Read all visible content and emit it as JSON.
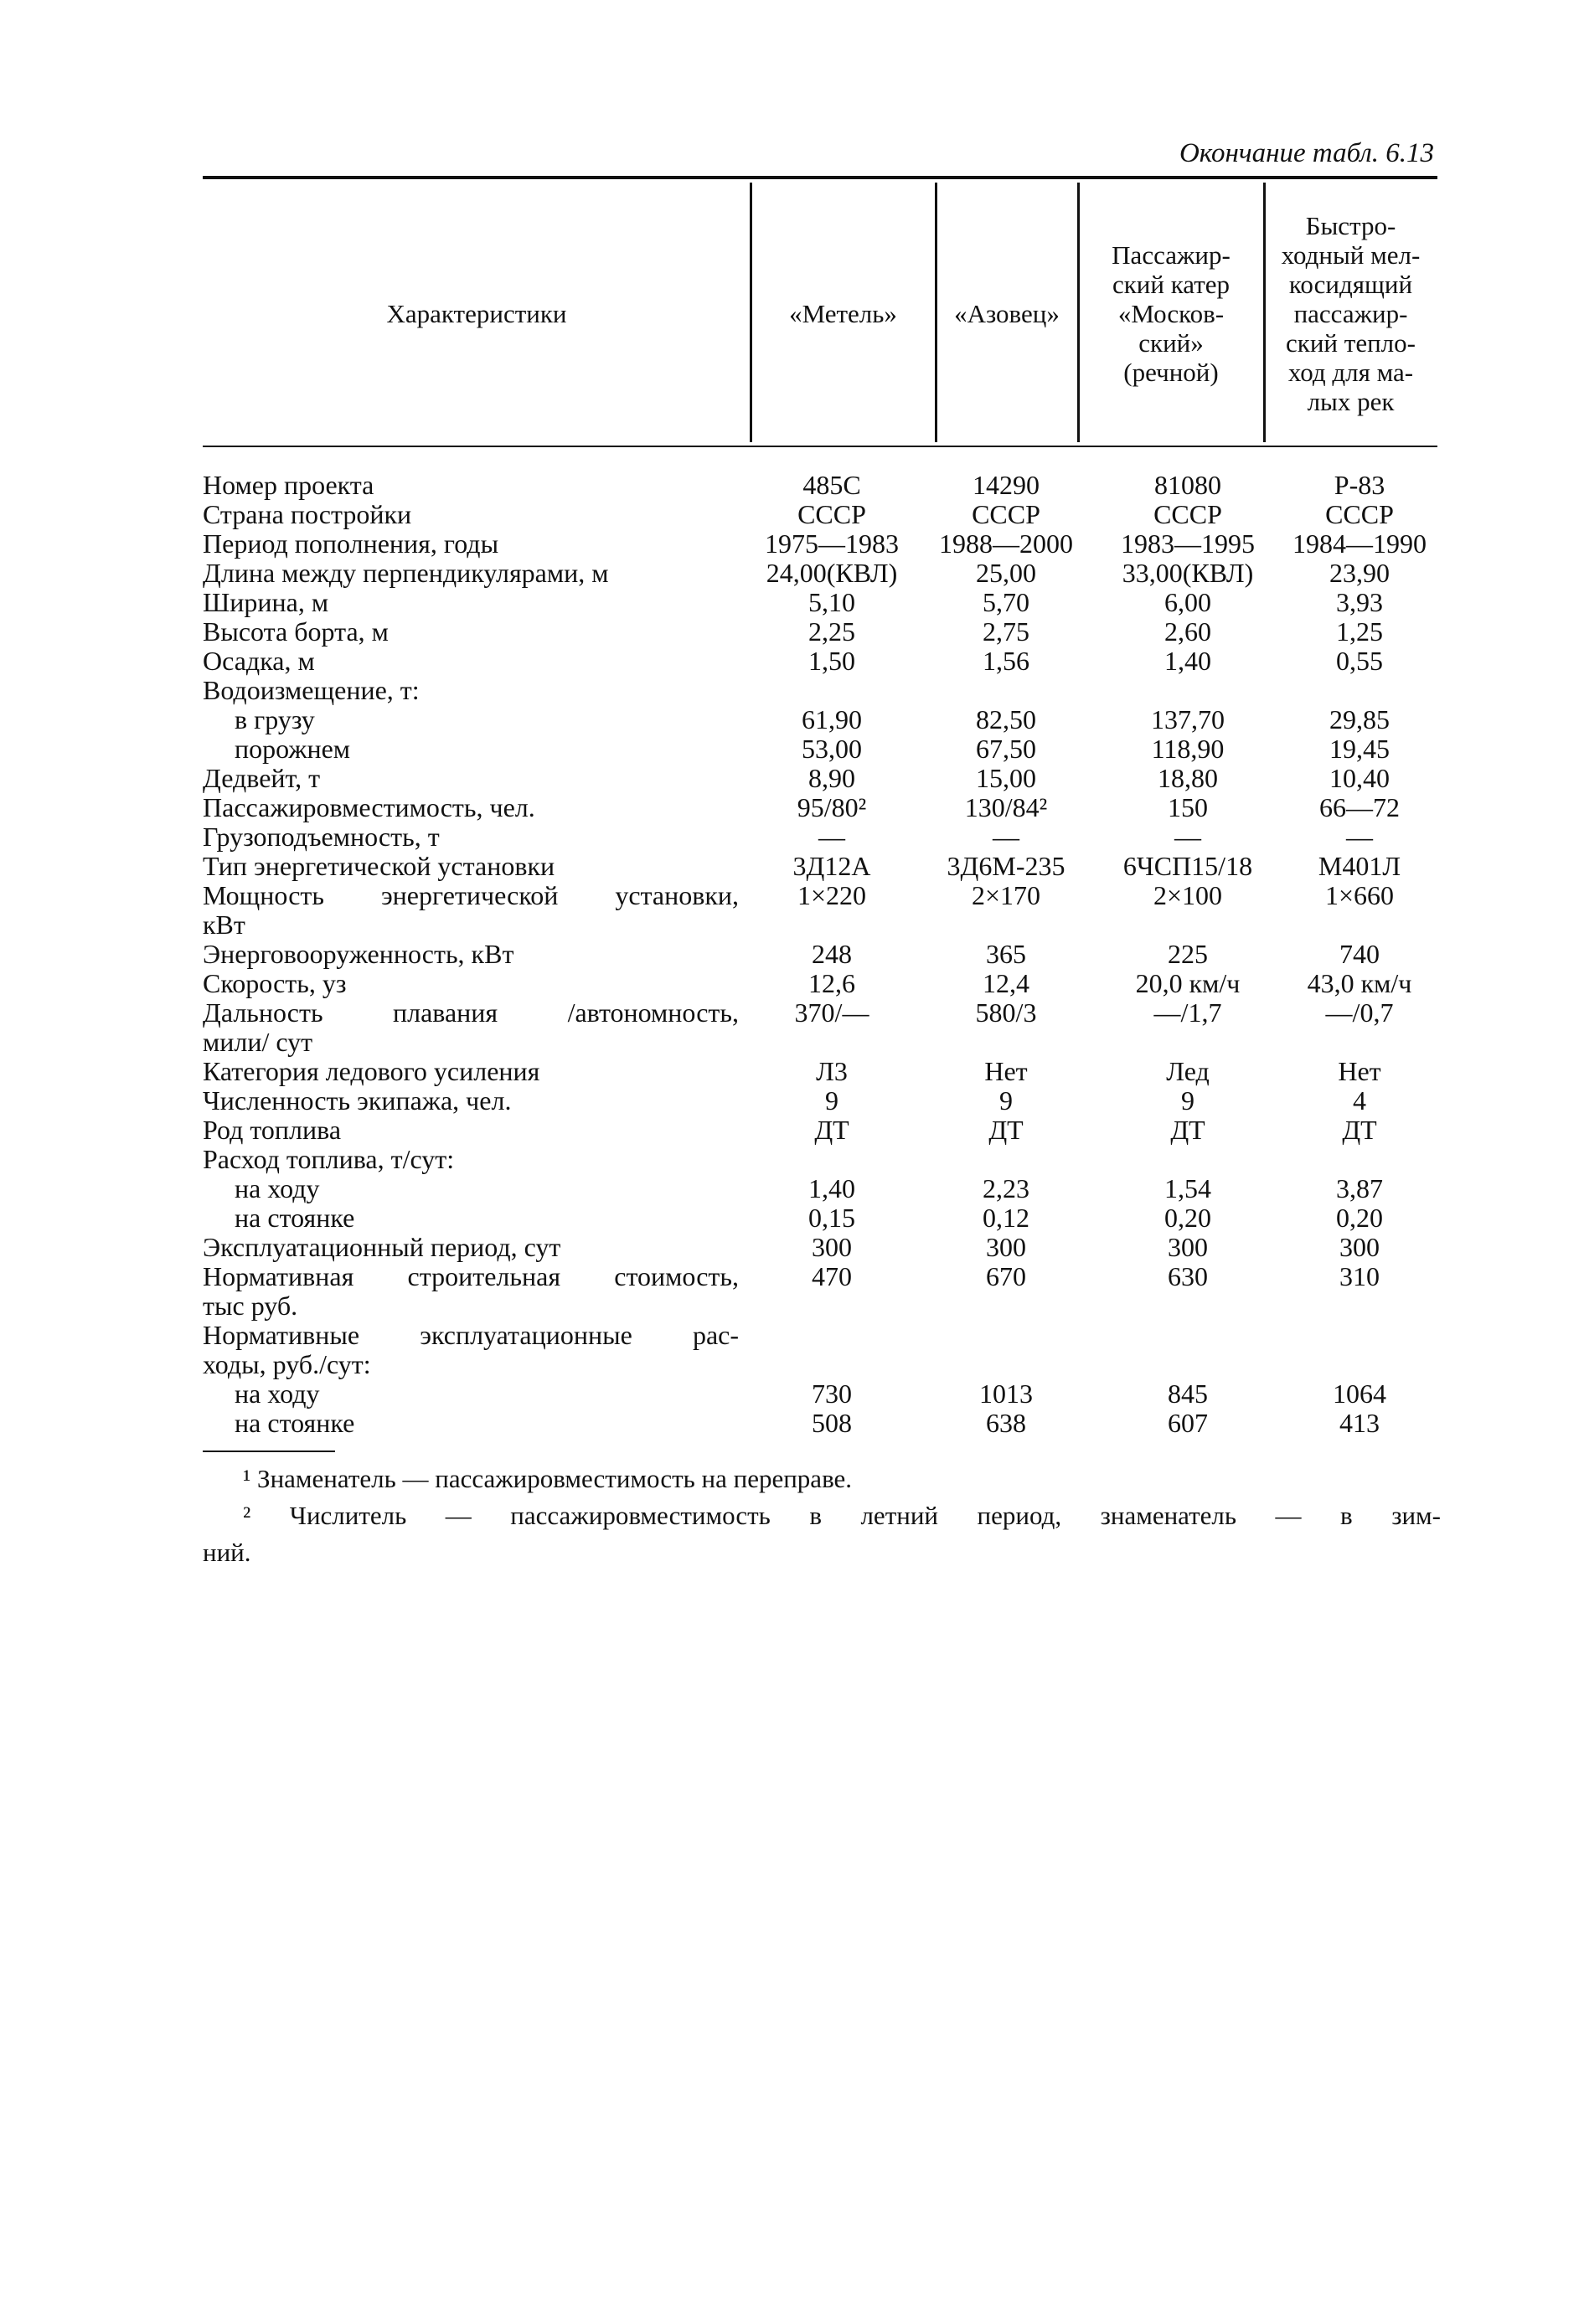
{
  "caption": "Окончание табл. 6.13",
  "header": [
    {
      "lines": [
        "Характеристики"
      ]
    },
    {
      "lines": [
        "«Метель»"
      ]
    },
    {
      "lines": [
        "«Азовец»"
      ]
    },
    {
      "lines": [
        "Пассажир-",
        "ский катер",
        "«Москов-",
        "ский»",
        "(речной)"
      ]
    },
    {
      "lines": [
        "Быстро-",
        "ходный мел-",
        "косидящий",
        "пассажир-",
        "ский тепло-",
        "ход для ма-",
        "лых рек"
      ]
    }
  ],
  "rows": [
    {
      "label": "Номер проекта",
      "values": [
        "485С",
        "14290",
        "81080",
        "Р-83"
      ]
    },
    {
      "label": "Страна постройки",
      "values": [
        "СССР",
        "СССР",
        "СССР",
        "СССР"
      ]
    },
    {
      "label": "Период пополнения, годы",
      "values": [
        "1975—1983",
        "1988—2000",
        "1983—1995",
        "1984—1990"
      ]
    },
    {
      "label": "Длина между перпендикулярами, м",
      "values": [
        "24,00(КВЛ)",
        "25,00",
        "33,00(КВЛ)",
        "23,90"
      ]
    },
    {
      "label": "Ширина, м",
      "values": [
        "5,10",
        "5,70",
        "6,00",
        "3,93"
      ]
    },
    {
      "label": "Высота борта, м",
      "values": [
        "2,25",
        "2,75",
        "2,60",
        "1,25"
      ]
    },
    {
      "label": "Осадка, м",
      "values": [
        "1,50",
        "1,56",
        "1,40",
        "0,55"
      ]
    },
    {
      "label": "Водоизмещение, т:",
      "values": []
    },
    {
      "label": "в грузу",
      "indent": true,
      "values": [
        "61,90",
        "82,50",
        "137,70",
        "29,85"
      ]
    },
    {
      "label": "порожнем",
      "indent": true,
      "values": [
        "53,00",
        "67,50",
        "118,90",
        "19,45"
      ]
    },
    {
      "label": "Дедвейт, т",
      "values": [
        "8,90",
        "15,00",
        "18,80",
        "10,40"
      ]
    },
    {
      "label": "Пассажировместимость, чел.",
      "values": [
        "95/80²",
        "130/84²",
        "150",
        "66—72"
      ]
    },
    {
      "label": "Грузоподъемность, т",
      "values": [
        "—",
        "—",
        "—",
        "—"
      ]
    },
    {
      "label": "Тип энергетической установки",
      "values": [
        "3Д12А",
        "3Д6М-235",
        "6ЧСП15/18",
        "М401Л"
      ]
    },
    {
      "label": "Мощность энергетической установки,",
      "just": true,
      "values": [
        "1×220",
        "2×170",
        "2×100",
        "1×660"
      ]
    },
    {
      "label": "кВт",
      "values": []
    },
    {
      "label": "Энерговооруженность, кВт",
      "values": [
        "248",
        "365",
        "225",
        "740"
      ]
    },
    {
      "label": "Скорость, уз",
      "values": [
        "12,6",
        "12,4",
        "20,0 км/ч",
        "43,0 км/ч"
      ]
    },
    {
      "label": "Дальность плавания /автономность,",
      "just": true,
      "values": [
        "370/—",
        "580/3",
        "—/1,7",
        "—/0,7"
      ]
    },
    {
      "label": "мили/ сут",
      "values": []
    },
    {
      "label": "Категория ледового усиления",
      "values": [
        "Л3",
        "Нет",
        "Лед",
        "Нет"
      ]
    },
    {
      "label": "Численность экипажа, чел.",
      "values": [
        "9",
        "9",
        "9",
        "4"
      ]
    },
    {
      "label": "Род топлива",
      "values": [
        "ДТ",
        "ДТ",
        "ДТ",
        "ДТ"
      ]
    },
    {
      "label": "Расход топлива, т/сут:",
      "values": []
    },
    {
      "label": "на ходу",
      "indent": true,
      "values": [
        "1,40",
        "2,23",
        "1,54",
        "3,87"
      ]
    },
    {
      "label": "на стоянке",
      "indent": true,
      "values": [
        "0,15",
        "0,12",
        "0,20",
        "0,20"
      ]
    },
    {
      "label": "Эксплуатационный период, сут",
      "values": [
        "300",
        "300",
        "300",
        "300"
      ]
    },
    {
      "label": "Нормативная строительная стоимость,",
      "just": true,
      "values": [
        "470",
        "670",
        "630",
        "310"
      ]
    },
    {
      "label": "тыс руб.",
      "values": []
    },
    {
      "label": "Нормативные эксплуатационные рас-",
      "just": true,
      "values": []
    },
    {
      "label": "ходы, руб./сут:",
      "values": []
    },
    {
      "label": "на ходу",
      "indent": true,
      "values": [
        "730",
        "1013",
        "845",
        "1064"
      ]
    },
    {
      "label": "на стоянке",
      "indent": true,
      "values": [
        "508",
        "638",
        "607",
        "413"
      ]
    }
  ],
  "footnotes": [
    "¹ Знаменатель — пассажировместимость на переправе.",
    "² Числитель — пассажировместимость в летний период, знаменатель — в зим-",
    "ний."
  ]
}
